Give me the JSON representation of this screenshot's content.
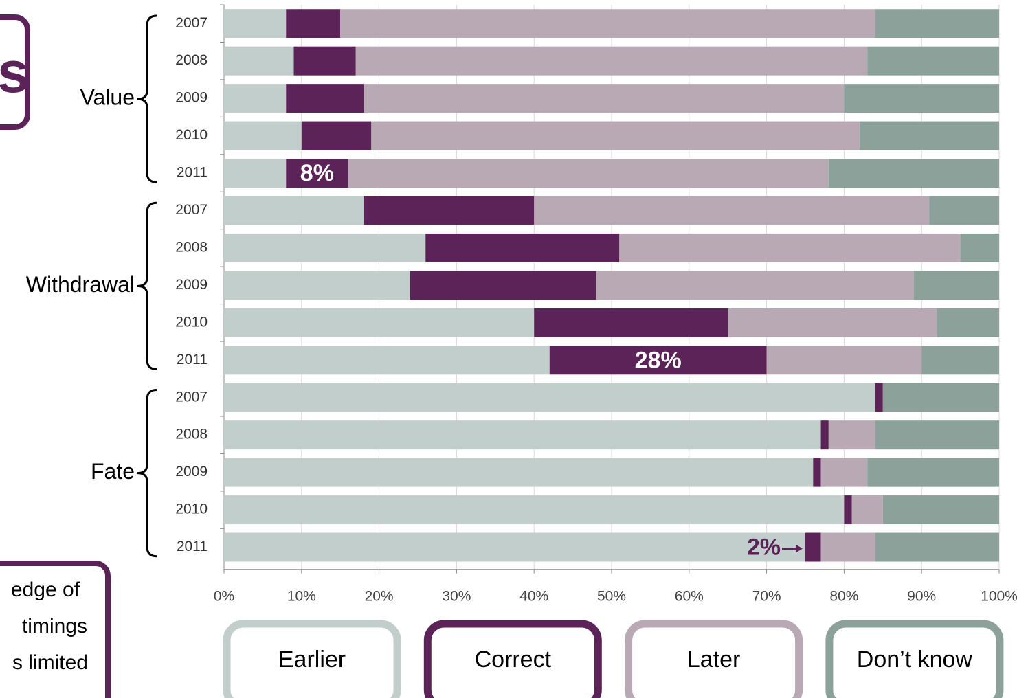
{
  "chart_data": {
    "type": "stacked_bar_horizontal",
    "groups": [
      {
        "label": "Value",
        "categories": [
          "2007",
          "2008",
          "2009",
          "2010",
          "2011"
        ]
      },
      {
        "label": "Withdrawal",
        "categories": [
          "2007",
          "2008",
          "2009",
          "2010",
          "2011"
        ]
      },
      {
        "label": "Fate",
        "categories": [
          "2007",
          "2008",
          "2009",
          "2010",
          "2011"
        ]
      }
    ],
    "series": [
      {
        "name": "Earlier",
        "color": "#c2cecb",
        "values": [
          8,
          9,
          8,
          10,
          8,
          18,
          26,
          24,
          40,
          42,
          84,
          77,
          76,
          80,
          75
        ]
      },
      {
        "name": "Correct",
        "color": "#5c2358",
        "values": [
          7,
          8,
          10,
          9,
          8,
          22,
          25,
          24,
          25,
          28,
          1,
          1,
          1,
          1,
          2
        ],
        "value_labels": [
          null,
          null,
          null,
          null,
          "8%",
          null,
          null,
          null,
          null,
          "28%",
          null,
          null,
          null,
          null,
          "2%"
        ]
      },
      {
        "name": "Later",
        "color": "#b8a9b4",
        "values": [
          69,
          66,
          62,
          63,
          62,
          51,
          44,
          41,
          27,
          20,
          0,
          6,
          6,
          4,
          7
        ]
      },
      {
        "name": "Don’t know",
        "color": "#8ba199",
        "values": [
          16,
          17,
          20,
          18,
          22,
          9,
          5,
          11,
          8,
          10,
          15,
          16,
          17,
          15,
          16
        ]
      }
    ],
    "xlim": [
      0,
      100
    ],
    "xticks": [
      {
        "value": 0,
        "label": "0%"
      },
      {
        "value": 10,
        "label": "10%"
      },
      {
        "value": 20,
        "label": "20%"
      },
      {
        "value": 30,
        "label": "30%"
      },
      {
        "value": 40,
        "label": "40%"
      },
      {
        "value": 50,
        "label": "50%"
      },
      {
        "value": 60,
        "label": "60%"
      },
      {
        "value": 70,
        "label": "70%"
      },
      {
        "value": 80,
        "label": "80%"
      },
      {
        "value": 90,
        "label": "90%"
      },
      {
        "value": 100,
        "label": "100%"
      }
    ],
    "grid": true,
    "corner_note": "s",
    "side_note": [
      "edge of",
      "timings",
      "s limited"
    ]
  }
}
